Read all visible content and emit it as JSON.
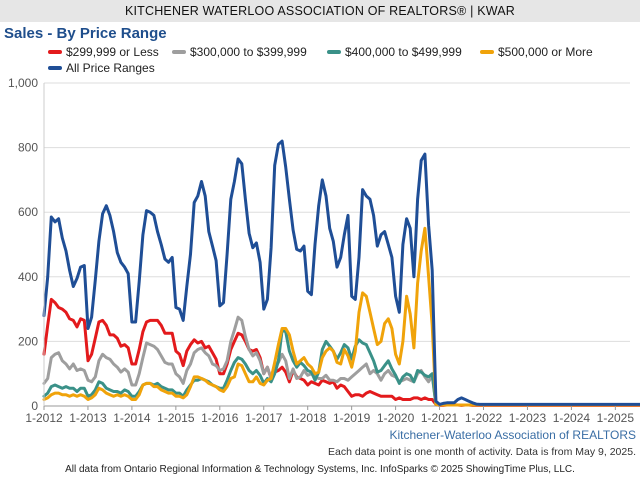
{
  "header": {
    "title": "KITCHENER WATERLOO ASSOCIATION OF REALTORS® | KWAR"
  },
  "chart_title": "Sales - By Price Range",
  "source": "Kitchener-Waterloo Association of REALTORS",
  "note": "Each data point is one month of activity. Data is from May 9, 2025.",
  "footer": "All data from Ontario Regional Information & Technology Systems, Inc. InfoSparks © 2025 ShowingTime Plus, LLC.",
  "chart_data": {
    "type": "line",
    "title": "Sales - By Price Range",
    "xlabel": "",
    "ylabel": "",
    "ylim": [
      0,
      1000
    ],
    "yticks": [
      "0",
      "200",
      "400",
      "600",
      "800",
      "1,000"
    ],
    "xticks": [
      "1-2012",
      "1-2013",
      "1-2014",
      "1-2015",
      "1-2016",
      "1-2017",
      "1-2018",
      "1-2019",
      "1-2020",
      "1-2021",
      "1-2022",
      "1-2023",
      "1-2024",
      "1-2025"
    ],
    "x_start": "2012-01",
    "grid": true,
    "legend": "top-left",
    "series": [
      {
        "name": "$299,999 or Less",
        "color": "#e31a1c",
        "values": [
          160,
          250,
          330,
          320,
          305,
          300,
          290,
          270,
          265,
          245,
          270,
          265,
          140,
          160,
          210,
          260,
          265,
          250,
          220,
          220,
          210,
          185,
          190,
          180,
          130,
          130,
          175,
          230,
          260,
          265,
          265,
          265,
          250,
          225,
          225,
          225,
          170,
          160,
          125,
          170,
          190,
          205,
          195,
          200,
          180,
          185,
          165,
          145,
          100,
          100,
          130,
          175,
          200,
          225,
          220,
          200,
          175,
          170,
          175,
          150,
          100,
          120,
          85,
          105,
          110,
          120,
          105,
          75,
          110,
          90,
          85,
          80,
          65,
          75,
          70,
          65,
          80,
          75,
          70,
          75,
          55,
          65,
          60,
          45,
          30,
          35,
          35,
          30,
          40,
          45,
          40,
          35,
          30,
          30,
          30,
          30,
          20,
          25,
          20,
          20,
          20,
          25,
          25,
          20,
          25,
          20,
          20,
          5,
          2,
          2,
          3,
          3,
          4,
          3,
          2,
          3,
          3,
          2,
          2,
          2,
          2,
          2,
          2,
          2,
          2,
          2,
          2,
          2,
          2,
          2,
          2,
          2,
          2,
          2,
          2,
          2,
          2,
          2,
          2,
          2,
          2,
          2,
          2,
          2,
          2,
          2,
          2,
          2,
          2,
          2,
          2,
          2,
          2,
          2,
          2,
          2,
          2,
          2,
          2,
          2,
          2,
          2,
          2,
          2,
          2,
          2,
          2,
          2
        ]
      },
      {
        "name": "$300,000 to $399,999",
        "color": "#9e9e9e",
        "values": [
          70,
          85,
          150,
          160,
          165,
          140,
          130,
          115,
          130,
          110,
          115,
          110,
          80,
          75,
          90,
          140,
          160,
          150,
          145,
          130,
          120,
          105,
          115,
          105,
          65,
          65,
          100,
          150,
          195,
          190,
          185,
          175,
          155,
          135,
          130,
          130,
          100,
          90,
          70,
          110,
          130,
          165,
          175,
          180,
          165,
          155,
          130,
          125,
          110,
          115,
          140,
          200,
          235,
          275,
          265,
          215,
          175,
          155,
          165,
          140,
          100,
          120,
          85,
          130,
          135,
          160,
          140,
          85,
          115,
          85,
          90,
          110,
          95,
          100,
          90,
          85,
          85,
          95,
          80,
          80,
          75,
          85,
          85,
          80,
          90,
          100,
          110,
          120,
          130,
          100,
          110,
          100,
          80,
          100,
          110,
          95,
          90,
          75,
          80,
          85,
          80,
          75,
          100,
          110,
          90,
          75,
          95,
          5,
          3,
          3,
          3,
          3,
          3,
          3,
          3,
          3,
          3,
          3,
          3,
          3,
          3,
          3,
          3,
          3,
          3,
          3,
          3,
          3,
          3,
          3,
          3,
          3,
          3,
          3,
          3,
          3,
          3,
          3,
          3,
          3,
          3,
          3,
          3,
          3,
          3,
          3,
          3,
          3,
          3,
          3,
          3,
          3,
          3,
          3,
          3,
          3,
          3,
          3,
          3,
          3,
          3,
          3,
          3,
          3,
          3,
          3,
          3,
          3
        ]
      },
      {
        "name": "$400,000 to $499,999",
        "color": "#3a9188",
        "values": [
          30,
          40,
          60,
          65,
          60,
          55,
          60,
          55,
          55,
          45,
          55,
          55,
          30,
          35,
          50,
          75,
          70,
          55,
          50,
          45,
          45,
          40,
          50,
          45,
          30,
          30,
          45,
          65,
          70,
          70,
          65,
          70,
          60,
          55,
          50,
          50,
          40,
          40,
          30,
          50,
          65,
          80,
          80,
          85,
          80,
          75,
          65,
          60,
          55,
          55,
          80,
          110,
          135,
          150,
          145,
          130,
          110,
          100,
          110,
          95,
          70,
          85,
          75,
          100,
          140,
          235,
          230,
          170,
          140,
          120,
          135,
          125,
          110,
          105,
          80,
          105,
          175,
          200,
          185,
          170,
          145,
          165,
          190,
          180,
          145,
          185,
          205,
          195,
          190,
          165,
          140,
          105,
          110,
          125,
          140,
          115,
          95,
          70,
          90,
          100,
          95,
          75,
          110,
          105,
          95,
          90,
          100,
          5,
          3,
          3,
          3,
          3,
          3,
          3,
          3,
          3,
          3,
          3,
          3,
          3,
          3,
          3,
          3,
          3,
          3,
          3,
          3,
          3,
          3,
          3,
          3,
          3,
          3,
          3,
          3,
          3,
          3,
          3,
          3,
          3,
          3,
          3,
          3,
          3,
          3,
          3,
          3,
          3,
          3,
          3,
          3,
          3,
          3,
          3,
          3,
          3,
          3,
          3,
          3,
          3,
          3,
          3,
          3,
          3,
          3,
          3,
          3,
          3
        ]
      },
      {
        "name": "$500,000 or More",
        "color": "#f0a30a",
        "values": [
          20,
          25,
          35,
          40,
          40,
          35,
          35,
          30,
          35,
          30,
          35,
          30,
          20,
          25,
          35,
          55,
          50,
          40,
          35,
          30,
          35,
          30,
          35,
          30,
          20,
          20,
          35,
          65,
          70,
          70,
          60,
          60,
          50,
          45,
          40,
          40,
          30,
          30,
          25,
          35,
          60,
          90,
          90,
          85,
          80,
          70,
          65,
          60,
          50,
          45,
          60,
          85,
          90,
          130,
          125,
          100,
          75,
          75,
          90,
          70,
          65,
          80,
          85,
          135,
          190,
          240,
          240,
          220,
          170,
          130,
          140,
          150,
          130,
          120,
          100,
          105,
          150,
          170,
          180,
          170,
          135,
          130,
          175,
          155,
          120,
          170,
          290,
          350,
          340,
          290,
          240,
          190,
          200,
          255,
          270,
          240,
          160,
          130,
          200,
          340,
          285,
          180,
          380,
          480,
          550,
          400,
          250,
          5,
          3,
          3,
          3,
          3,
          3,
          3,
          3,
          3,
          3,
          3,
          3,
          3,
          3,
          3,
          3,
          3,
          3,
          3,
          3,
          3,
          3,
          3,
          3,
          3,
          3,
          3,
          3,
          3,
          3,
          3,
          3,
          3,
          3,
          3,
          3,
          3,
          3,
          3,
          3,
          3,
          3,
          3,
          3,
          3,
          3,
          3,
          3,
          3,
          3,
          3,
          3,
          3,
          3,
          3,
          3,
          3,
          3,
          3,
          3,
          3
        ]
      },
      {
        "name": "All Price Ranges",
        "color": "#1f4e96",
        "values": [
          280,
          400,
          585,
          570,
          580,
          520,
          480,
          420,
          370,
          395,
          430,
          435,
          240,
          275,
          390,
          510,
          595,
          620,
          590,
          540,
          475,
          445,
          430,
          410,
          260,
          260,
          385,
          530,
          605,
          600,
          590,
          540,
          500,
          455,
          445,
          460,
          305,
          300,
          265,
          370,
          470,
          630,
          650,
          695,
          650,
          540,
          495,
          450,
          310,
          320,
          470,
          640,
          695,
          765,
          750,
          640,
          535,
          490,
          505,
          445,
          300,
          330,
          490,
          745,
          810,
          820,
          740,
          640,
          545,
          485,
          480,
          495,
          355,
          345,
          500,
          620,
          700,
          650,
          550,
          510,
          430,
          460,
          530,
          590,
          340,
          330,
          460,
          670,
          650,
          640,
          590,
          495,
          530,
          540,
          500,
          460,
          340,
          290,
          500,
          580,
          550,
          400,
          640,
          760,
          780,
          560,
          420,
          15,
          5,
          8,
          10,
          10,
          10,
          20,
          25,
          20,
          15,
          10,
          6,
          5,
          5,
          5,
          5,
          5,
          5,
          5,
          5,
          5,
          5,
          5,
          5,
          5,
          5,
          5,
          5,
          5,
          5,
          5,
          5,
          5,
          5,
          5,
          5,
          5,
          5,
          5,
          5,
          5,
          5,
          5,
          5,
          5,
          5,
          5,
          5,
          5,
          5,
          5,
          5,
          5,
          5,
          5,
          5,
          5,
          5,
          5,
          5,
          5,
          5,
          5
        ]
      }
    ]
  }
}
